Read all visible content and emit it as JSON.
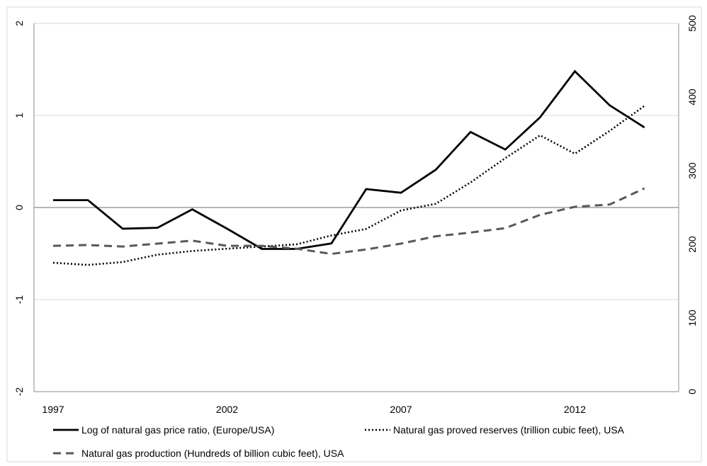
{
  "chart_data": {
    "type": "line",
    "x": [
      1997,
      1998,
      1999,
      2000,
      2001,
      2002,
      2003,
      2004,
      2005,
      2006,
      2007,
      2008,
      2009,
      2010,
      2011,
      2012,
      2013,
      2014
    ],
    "x_tick_labels": [
      "1997",
      "2002",
      "2007",
      "2012"
    ],
    "left_axis": {
      "ylim": [
        -2,
        2
      ],
      "ticks": [
        -2,
        -1,
        0,
        1,
        2
      ],
      "tick_labels": [
        "-2",
        "-1",
        "0",
        "1",
        "2"
      ]
    },
    "right_axis": {
      "ylim": [
        0,
        500
      ],
      "ticks": [
        0,
        100,
        200,
        300,
        400,
        500
      ],
      "tick_labels": [
        "0",
        "100",
        "200",
        "300",
        "400",
        "500"
      ]
    },
    "series": [
      {
        "name": "Log of natural gas price ratio, (Europe/USA)",
        "axis": "left",
        "style": "solid",
        "color": "#000000",
        "values": [
          0.08,
          0.08,
          -0.23,
          -0.22,
          -0.02,
          -0.23,
          -0.45,
          -0.45,
          -0.39,
          0.2,
          0.16,
          0.41,
          0.82,
          0.63,
          0.98,
          1.48,
          1.11,
          0.87
        ]
      },
      {
        "name": "Natural gas proved reserves (trillion cubic feet), USA",
        "axis": "right",
        "style": "dotted",
        "color": "#000000",
        "values": [
          175,
          172,
          176,
          186,
          191,
          194,
          197,
          200,
          212,
          221,
          246,
          255,
          284,
          317,
          348,
          323,
          354,
          388
        ]
      },
      {
        "name": "Natural gas production (Hundreds of billion cubic feet), USA",
        "axis": "right",
        "style": "dashed",
        "color": "#595959",
        "values": [
          198,
          199,
          197,
          201,
          205,
          198,
          198,
          194,
          187,
          193,
          201,
          211,
          216,
          222,
          240,
          251,
          254,
          276
        ]
      }
    ],
    "grid": "horizontal",
    "legend_position": "bottom"
  }
}
